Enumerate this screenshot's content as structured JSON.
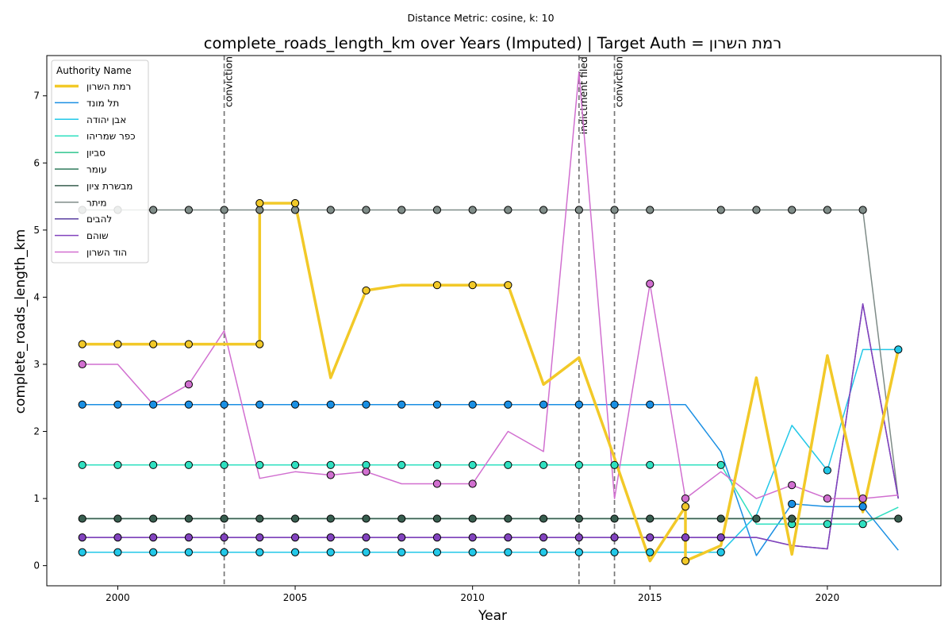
{
  "chart_data": {
    "type": "line",
    "suptitle": "Distance Metric: cosine, k: 10",
    "title": "complete_roads_length_km over Years (Imputed) | Target Auth = רמת השרון",
    "xlabel": "Year",
    "ylabel": "complete_roads_length_km",
    "xlim": [
      1998,
      2023.2
    ],
    "ylim": [
      -0.3,
      7.6
    ],
    "x_ticks": [
      2000,
      2005,
      2010,
      2015,
      2020
    ],
    "y_ticks": [
      0,
      1,
      2,
      3,
      4,
      5,
      6,
      7
    ],
    "legend_title": "Authority Name",
    "legend_position": "upper-left",
    "grid": false,
    "events": [
      {
        "x": 2003,
        "label": "conviction"
      },
      {
        "x": 2013,
        "label": "indictment filed"
      },
      {
        "x": 2014,
        "label": "conviction"
      }
    ],
    "series": [
      {
        "name": "רמת השרון",
        "color": "#f2c928",
        "width": 3.5,
        "target": true,
        "x": [
          1999,
          2000,
          2001,
          2002,
          2003,
          2004,
          2004,
          2005,
          2006,
          2007,
          2008,
          2009,
          2010,
          2011,
          2012,
          2013,
          2014,
          2015,
          2016,
          2016,
          2017,
          2018,
          2019,
          2020,
          2021,
          2022
        ],
        "y": [
          3.3,
          3.3,
          3.3,
          3.3,
          3.3,
          3.3,
          5.4,
          5.4,
          2.8,
          4.1,
          4.18,
          4.18,
          4.18,
          4.18,
          2.7,
          3.1,
          1.6,
          0.07,
          0.88,
          0.07,
          0.3,
          2.8,
          0.17,
          3.13,
          0.8,
          3.22
        ],
        "markers": [
          true,
          true,
          true,
          true,
          false,
          true,
          true,
          true,
          false,
          true,
          false,
          true,
          true,
          true,
          false,
          false,
          false,
          false,
          true,
          true,
          false,
          false,
          false,
          false,
          false,
          false
        ]
      },
      {
        "name": "תל מונד",
        "color": "#1a8fe3",
        "width": 1.5,
        "x": [
          1999,
          2000,
          2001,
          2002,
          2003,
          2004,
          2005,
          2006,
          2007,
          2008,
          2009,
          2010,
          2011,
          2012,
          2013,
          2014,
          2015,
          2016,
          2017,
          2018,
          2019,
          2020,
          2021,
          2022
        ],
        "y": [
          2.4,
          2.4,
          2.4,
          2.4,
          2.4,
          2.4,
          2.4,
          2.4,
          2.4,
          2.4,
          2.4,
          2.4,
          2.4,
          2.4,
          2.4,
          2.4,
          2.4,
          2.4,
          1.7,
          0.15,
          0.92,
          0.88,
          0.88,
          0.23
        ],
        "markers": [
          true,
          true,
          true,
          true,
          true,
          true,
          true,
          true,
          true,
          true,
          true,
          true,
          true,
          true,
          true,
          true,
          true,
          false,
          false,
          false,
          true,
          false,
          true,
          false
        ]
      },
      {
        "name": "אבן יהודה",
        "color": "#22c8e8",
        "width": 1.5,
        "x": [
          1999,
          2000,
          2001,
          2002,
          2003,
          2004,
          2005,
          2006,
          2007,
          2008,
          2009,
          2010,
          2011,
          2012,
          2013,
          2014,
          2015,
          2016,
          2017,
          2018,
          2019,
          2020,
          2021,
          2022
        ],
        "y": [
          0.2,
          0.2,
          0.2,
          0.2,
          0.2,
          0.2,
          0.2,
          0.2,
          0.2,
          0.2,
          0.2,
          0.2,
          0.2,
          0.2,
          0.2,
          0.2,
          0.2,
          0.2,
          0.2,
          0.75,
          2.09,
          1.42,
          3.22,
          3.22
        ],
        "markers": [
          true,
          true,
          true,
          true,
          true,
          true,
          true,
          true,
          true,
          true,
          true,
          true,
          true,
          true,
          true,
          true,
          true,
          false,
          true,
          false,
          false,
          true,
          false,
          true
        ]
      },
      {
        "name": "כפר שמריהו",
        "color": "#2fe0c0",
        "width": 1.5,
        "x": [
          1999,
          2000,
          2001,
          2002,
          2003,
          2004,
          2005,
          2006,
          2007,
          2008,
          2009,
          2010,
          2011,
          2012,
          2013,
          2014,
          2015,
          2016,
          2017,
          2018,
          2019,
          2020,
          2021,
          2022
        ],
        "y": [
          1.5,
          1.5,
          1.5,
          1.5,
          1.5,
          1.5,
          1.5,
          1.5,
          1.5,
          1.5,
          1.5,
          1.5,
          1.5,
          1.5,
          1.5,
          1.5,
          1.5,
          1.5,
          1.5,
          0.62,
          0.62,
          0.62,
          0.62,
          0.87
        ],
        "markers": [
          true,
          true,
          true,
          true,
          true,
          true,
          true,
          true,
          true,
          true,
          true,
          true,
          true,
          true,
          true,
          true,
          true,
          false,
          true,
          false,
          true,
          true,
          true,
          false
        ]
      },
      {
        "name": "סביון",
        "color": "#2ec58e",
        "width": 1.5,
        "x": [
          1999,
          2000,
          2001,
          2002,
          2003,
          2004,
          2005,
          2006,
          2007,
          2008,
          2009,
          2010,
          2011,
          2012,
          2013,
          2014,
          2015,
          2016,
          2017,
          2018,
          2019,
          2020,
          2021,
          2022
        ],
        "y": [
          0.7,
          0.7,
          0.7,
          0.7,
          0.7,
          0.7,
          0.7,
          0.7,
          0.7,
          0.7,
          0.7,
          0.7,
          0.7,
          0.7,
          0.7,
          0.7,
          0.7,
          0.7,
          0.7,
          0.7,
          0.7,
          0.7,
          0.7,
          0.7
        ],
        "markers": [
          false,
          false,
          false,
          false,
          false,
          false,
          false,
          false,
          false,
          false,
          false,
          false,
          false,
          false,
          false,
          false,
          false,
          false,
          false,
          false,
          false,
          false,
          false,
          false
        ]
      },
      {
        "name": "עומר",
        "color": "#2f7a5c",
        "width": 1.5,
        "x": [
          1999,
          2000,
          2001,
          2002,
          2003,
          2004,
          2005,
          2006,
          2007,
          2008,
          2009,
          2010,
          2011,
          2012,
          2013,
          2014,
          2015,
          2016,
          2017,
          2018,
          2019,
          2020,
          2021,
          2022
        ],
        "y": [
          0.7,
          0.7,
          0.7,
          0.7,
          0.7,
          0.7,
          0.7,
          0.7,
          0.7,
          0.7,
          0.7,
          0.7,
          0.7,
          0.7,
          0.7,
          0.7,
          0.7,
          0.7,
          0.7,
          0.7,
          0.7,
          0.7,
          0.7,
          0.7
        ],
        "markers": [
          false,
          false,
          false,
          false,
          false,
          false,
          false,
          false,
          false,
          false,
          false,
          false,
          false,
          false,
          false,
          false,
          false,
          false,
          false,
          false,
          false,
          false,
          false,
          false
        ]
      },
      {
        "name": "מבשרת ציון",
        "color": "#385e4f",
        "width": 1.5,
        "x": [
          1999,
          2000,
          2001,
          2002,
          2003,
          2004,
          2005,
          2006,
          2007,
          2008,
          2009,
          2010,
          2011,
          2012,
          2013,
          2014,
          2015,
          2016,
          2017,
          2018,
          2019,
          2020,
          2021,
          2022
        ],
        "y": [
          0.7,
          0.7,
          0.7,
          0.7,
          0.7,
          0.7,
          0.7,
          0.7,
          0.7,
          0.7,
          0.7,
          0.7,
          0.7,
          0.7,
          0.7,
          0.7,
          0.7,
          0.7,
          0.7,
          0.7,
          0.7,
          0.7,
          0.7,
          0.7
        ],
        "markers": [
          true,
          true,
          true,
          true,
          true,
          true,
          true,
          true,
          true,
          true,
          true,
          true,
          true,
          true,
          true,
          true,
          true,
          false,
          true,
          true,
          true,
          false,
          false,
          true
        ]
      },
      {
        "name": "מיתר",
        "color": "#7f8c88",
        "width": 1.5,
        "x": [
          1999,
          2000,
          2001,
          2002,
          2003,
          2004,
          2005,
          2006,
          2007,
          2008,
          2009,
          2010,
          2011,
          2012,
          2013,
          2014,
          2015,
          2016,
          2017,
          2018,
          2019,
          2020,
          2021,
          2022
        ],
        "y": [
          5.3,
          5.3,
          5.3,
          5.3,
          5.3,
          5.3,
          5.3,
          5.3,
          5.3,
          5.3,
          5.3,
          5.3,
          5.3,
          5.3,
          5.3,
          5.3,
          5.3,
          5.3,
          5.3,
          5.3,
          5.3,
          5.3,
          5.3,
          1.0
        ],
        "markers": [
          true,
          true,
          true,
          true,
          true,
          true,
          true,
          true,
          true,
          true,
          true,
          true,
          true,
          true,
          true,
          true,
          true,
          false,
          true,
          true,
          true,
          true,
          true,
          false
        ]
      },
      {
        "name": "להבים",
        "color": "#5a3fa0",
        "width": 1.5,
        "x": [
          1999,
          2000,
          2001,
          2002,
          2003,
          2004,
          2005,
          2006,
          2007,
          2008,
          2009,
          2010,
          2011,
          2012,
          2013,
          2014,
          2015,
          2016,
          2017,
          2018,
          2019,
          2020,
          2021,
          2022
        ],
        "y": [
          0.42,
          0.42,
          0.42,
          0.42,
          0.42,
          0.42,
          0.42,
          0.42,
          0.42,
          0.42,
          0.42,
          0.42,
          0.42,
          0.42,
          0.42,
          0.42,
          0.42,
          0.42,
          0.42,
          0.42,
          0.3,
          0.25,
          3.9,
          1.0
        ],
        "markers": [
          false,
          false,
          false,
          false,
          false,
          false,
          false,
          false,
          false,
          false,
          false,
          false,
          false,
          false,
          false,
          false,
          false,
          false,
          false,
          false,
          false,
          false,
          false,
          false
        ]
      },
      {
        "name": "שוהם",
        "color": "#8243be",
        "width": 1.5,
        "x": [
          1999,
          2000,
          2001,
          2002,
          2003,
          2004,
          2005,
          2006,
          2007,
          2008,
          2009,
          2010,
          2011,
          2012,
          2013,
          2014,
          2015,
          2016,
          2017,
          2018,
          2019,
          2020,
          2021,
          2022
        ],
        "y": [
          0.42,
          0.42,
          0.42,
          0.42,
          0.42,
          0.42,
          0.42,
          0.42,
          0.42,
          0.42,
          0.42,
          0.42,
          0.42,
          0.42,
          0.42,
          0.42,
          0.42,
          0.42,
          0.42,
          0.42,
          0.3,
          0.25,
          3.9,
          1.0
        ],
        "markers": [
          true,
          true,
          true,
          true,
          true,
          true,
          true,
          true,
          true,
          true,
          true,
          true,
          true,
          true,
          true,
          true,
          true,
          true,
          true,
          false,
          false,
          false,
          false,
          false
        ]
      },
      {
        "name": "הוד השרון",
        "color": "#d16fd0",
        "width": 1.5,
        "x": [
          1999,
          2000,
          2001,
          2002,
          2003,
          2004,
          2005,
          2006,
          2007,
          2008,
          2009,
          2010,
          2011,
          2012,
          2013,
          2014,
          2015,
          2016,
          2017,
          2018,
          2019,
          2020,
          2021,
          2022
        ],
        "y": [
          3.0,
          3.0,
          2.4,
          2.7,
          3.5,
          1.3,
          1.4,
          1.35,
          1.4,
          1.22,
          1.22,
          1.22,
          2.0,
          1.7,
          7.35,
          1.0,
          4.2,
          1.0,
          1.4,
          1.0,
          1.2,
          1.0,
          1.0,
          1.05
        ],
        "markers": [
          true,
          false,
          false,
          true,
          false,
          false,
          false,
          true,
          true,
          false,
          true,
          true,
          false,
          false,
          false,
          false,
          true,
          true,
          false,
          false,
          true,
          true,
          true,
          false
        ]
      }
    ]
  }
}
